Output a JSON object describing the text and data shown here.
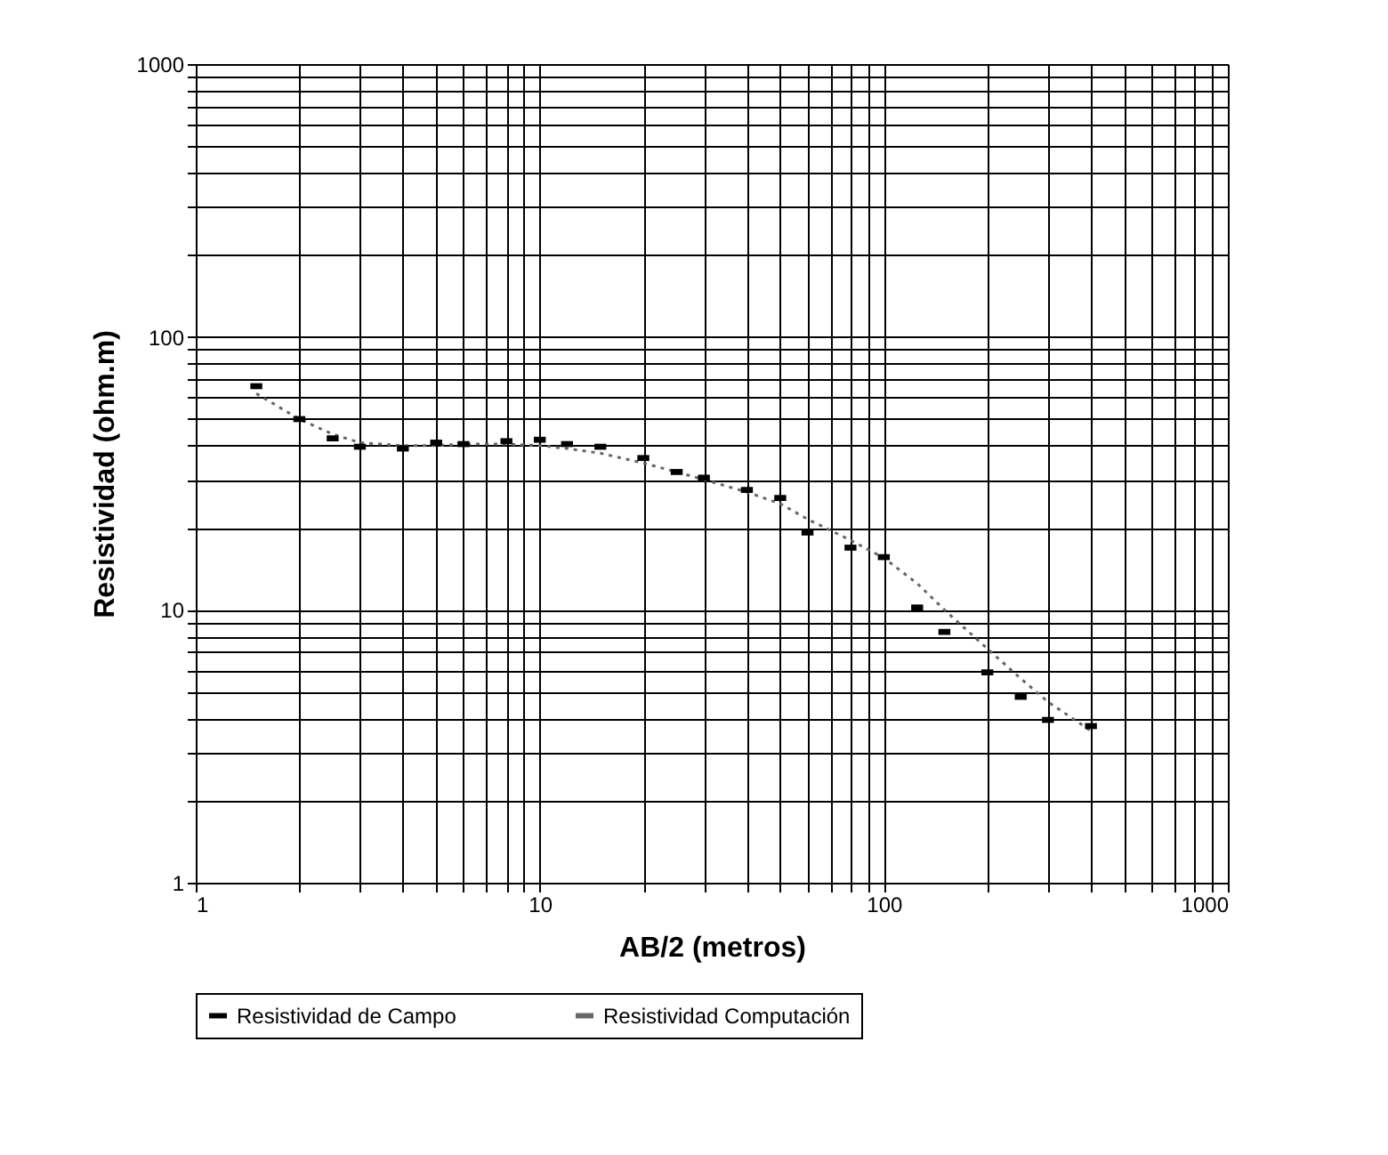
{
  "chart_data": {
    "type": "scatter",
    "xlabel": "AB/2 (metros)",
    "ylabel": "Resistividad (ohm.m)",
    "log": "xy",
    "grid": true,
    "legend": "bottom",
    "xlim": [
      1,
      1000
    ],
    "xticks": [
      1,
      10,
      100,
      1000
    ],
    "ylim": [
      1,
      1000
    ],
    "yticks": [
      1,
      10,
      100,
      1000
    ],
    "x": [
      1.5,
      2,
      2.5,
      3,
      4,
      5,
      6,
      8,
      10,
      12,
      15,
      20,
      25,
      30,
      40,
      50,
      60,
      80,
      100,
      125,
      150,
      200,
      250,
      300,
      400
    ],
    "series": [
      {
        "name": "Resistividad de Campo",
        "color": "#000000",
        "values": [
          66,
          50,
          42.5,
          39.6,
          39,
          41,
          40.5,
          41.5,
          42,
          40.5,
          39.6,
          36,
          32,
          30.5,
          27.5,
          25.7,
          19.2,
          16.9,
          15.6,
          10.2,
          8.3,
          5.9,
          4.8,
          3.95,
          3.75
        ]
      },
      {
        "name": "Resistividad Computación",
        "type": "line",
        "line_style": "dotted",
        "color": "#666666",
        "values": [
          62,
          50,
          44,
          41,
          40,
          40,
          40.5,
          40.5,
          40,
          39,
          37.5,
          34.5,
          32,
          30,
          27,
          24.5,
          21.5,
          18,
          15.5,
          12.5,
          10,
          7.2,
          5.6,
          4.6,
          3.6
        ]
      }
    ]
  }
}
